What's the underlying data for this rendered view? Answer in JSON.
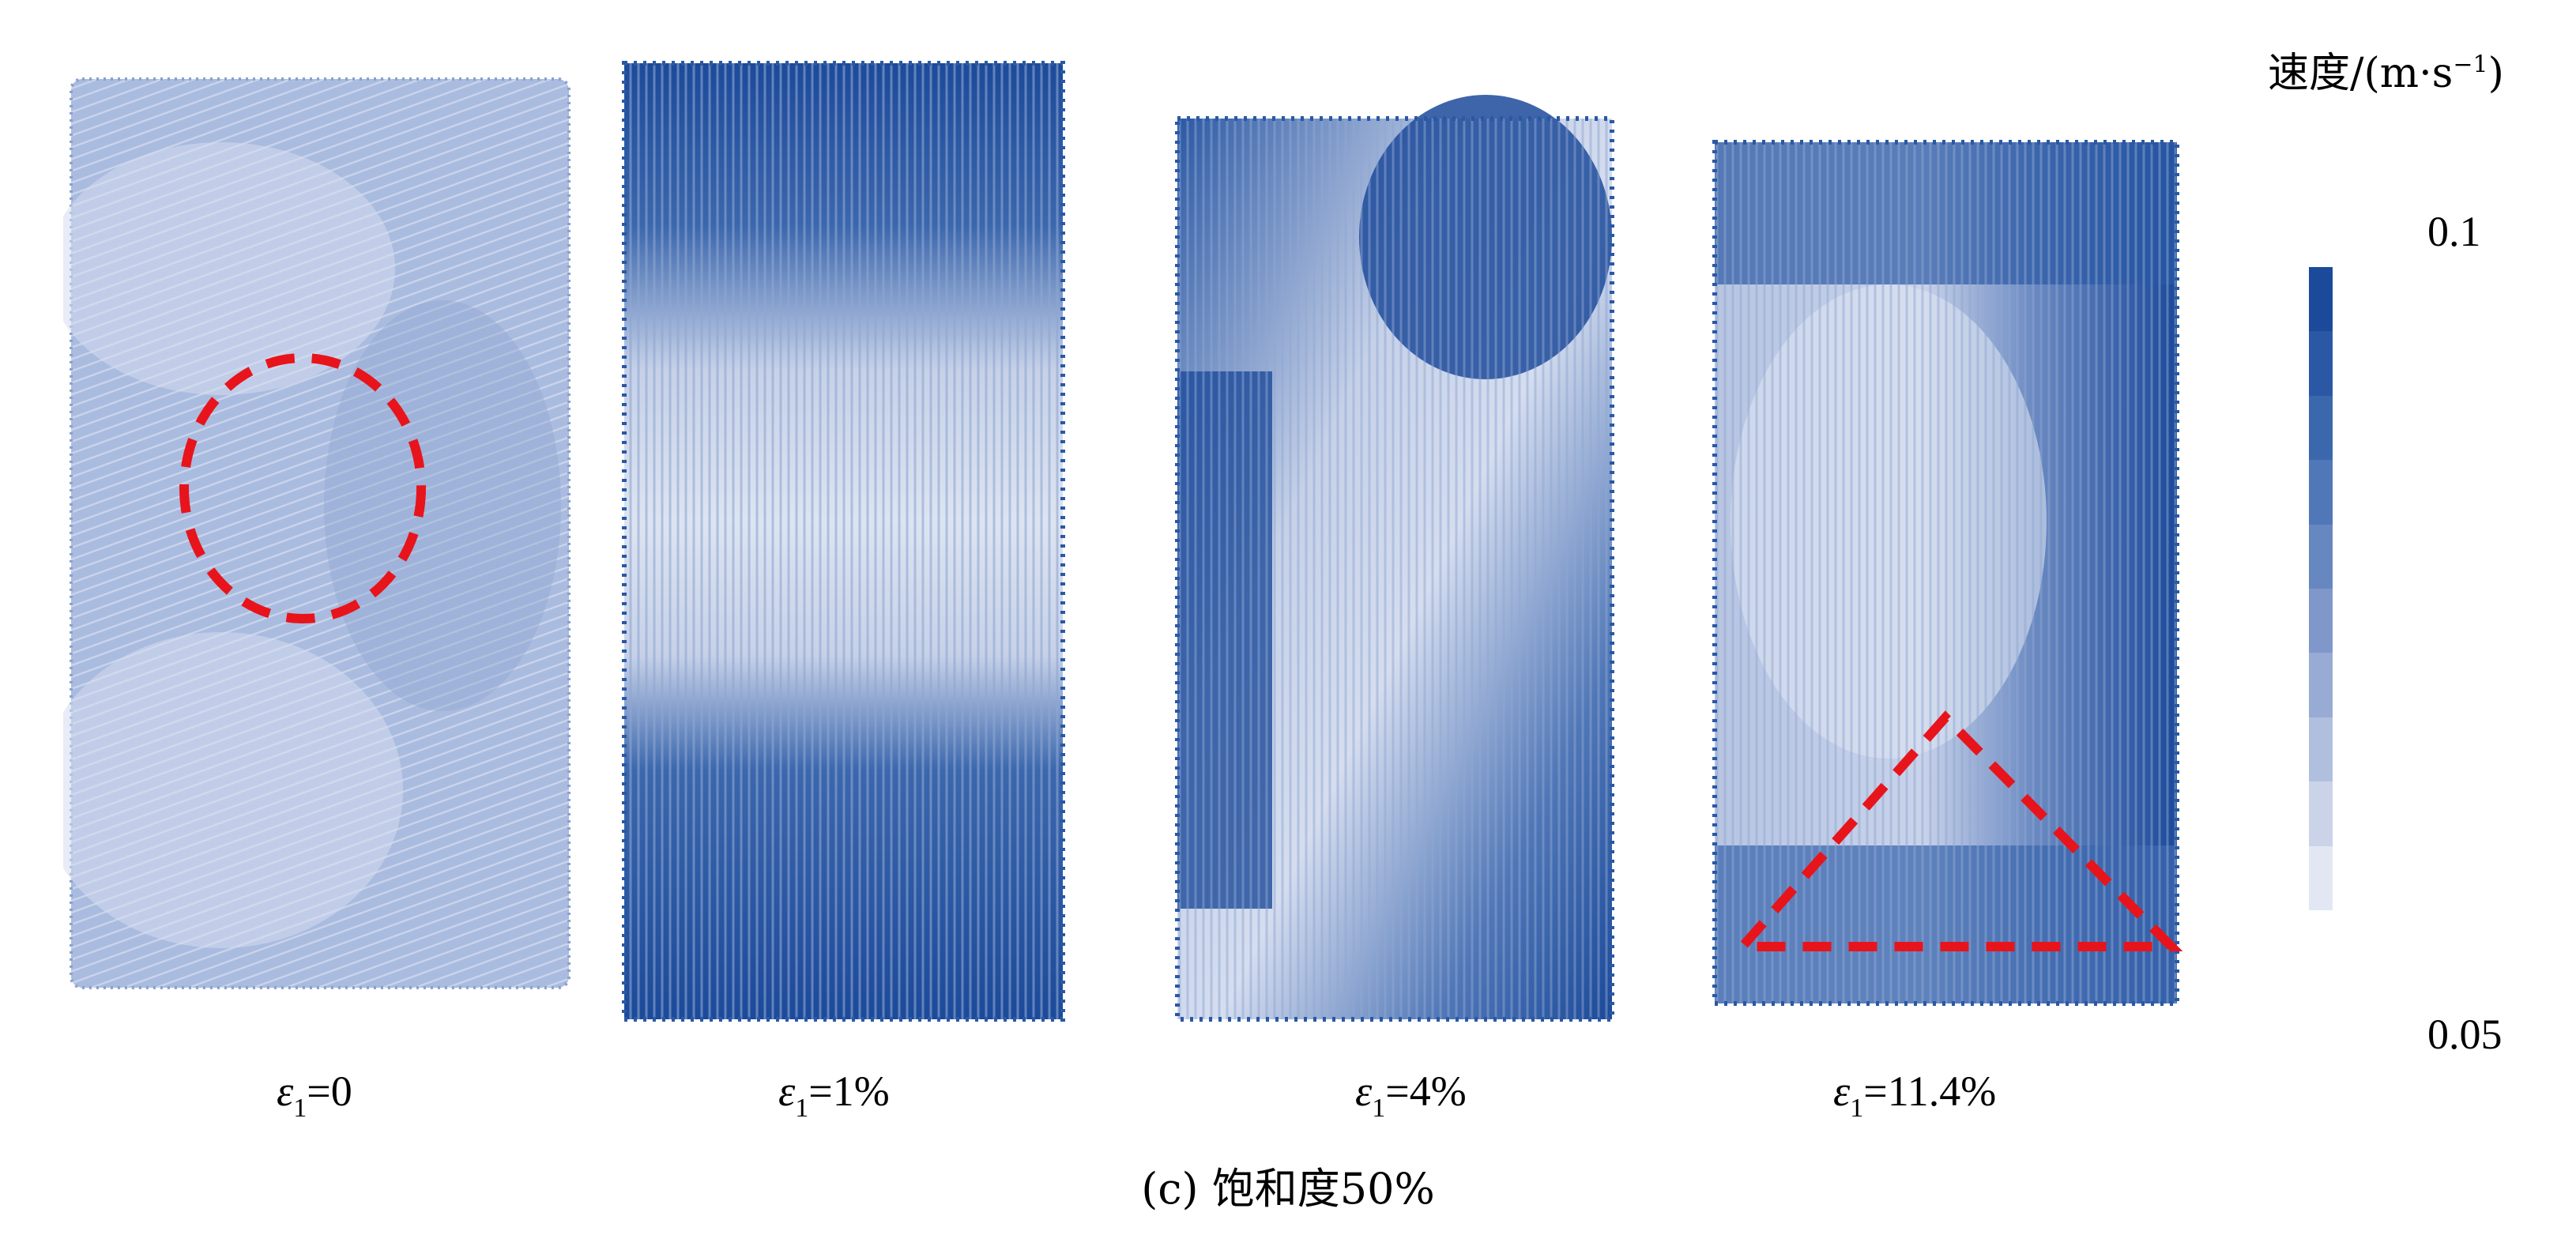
{
  "figure": {
    "caption": "(c) 饱和度50%",
    "panels": [
      {
        "id": "p1",
        "label_prefix": "ε",
        "label_sub": "1",
        "label_value": "=0",
        "annotation": "circle"
      },
      {
        "id": "p2",
        "label_prefix": "ε",
        "label_sub": "1",
        "label_value": "=1%",
        "annotation": "none"
      },
      {
        "id": "p3",
        "label_prefix": "ε",
        "label_sub": "1",
        "label_value": "=4%",
        "annotation": "none"
      },
      {
        "id": "p4",
        "label_prefix": "ε",
        "label_sub": "1",
        "label_value": "=11.4%",
        "annotation": "triangle"
      }
    ]
  },
  "legend": {
    "title_text": "速度/(m·s",
    "title_sup": "−1",
    "title_close": ")",
    "max_label": "0.1",
    "min_label": "0.05",
    "colors_top_to_bottom": [
      "#1c4a9a",
      "#2a58a4",
      "#3b67ad",
      "#5077b7",
      "#6787c0",
      "#7f98c9",
      "#98abd4",
      "#b1bfde",
      "#cad3e8",
      "#e2e7f3"
    ]
  },
  "annotation_color": "#e8141b"
}
